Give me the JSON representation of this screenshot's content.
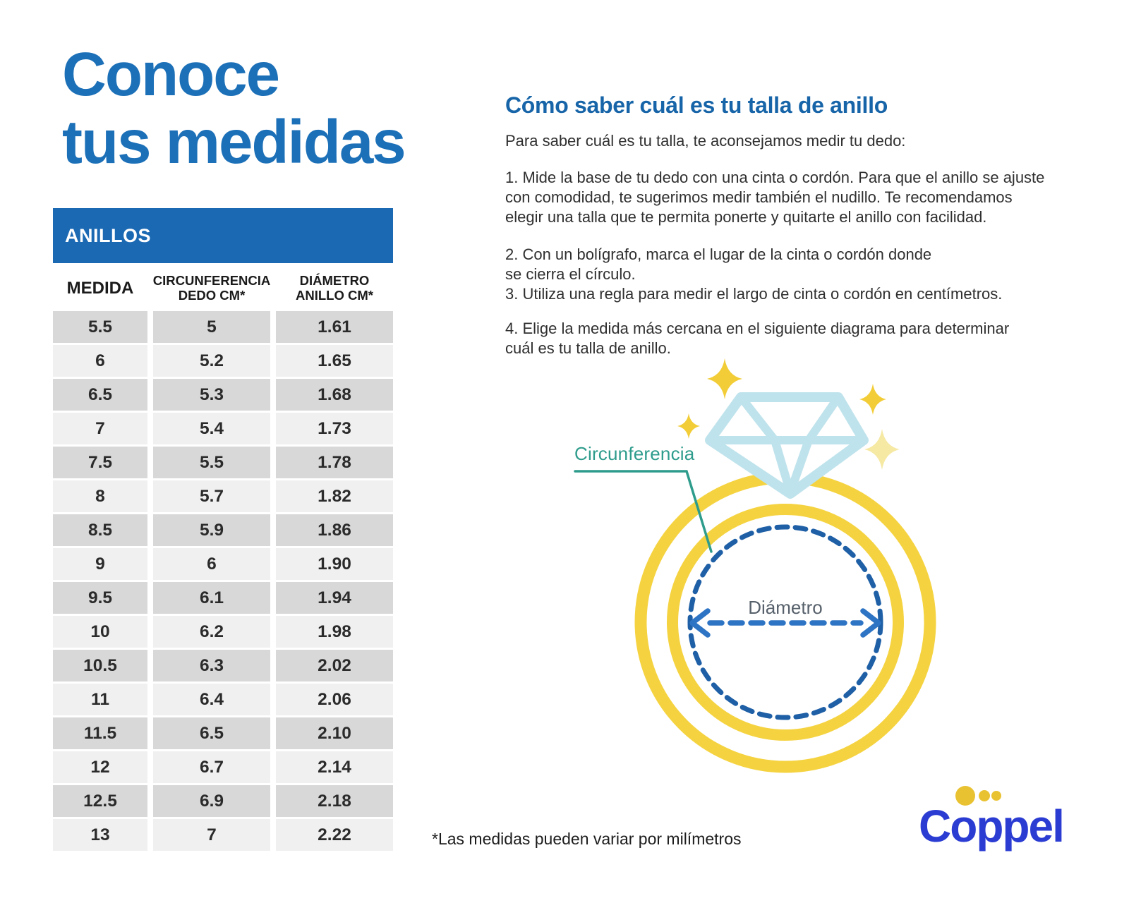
{
  "left": {
    "title_line1": "Conoce",
    "title_line2": "tus medidas"
  },
  "table": {
    "band": "ANILLOS",
    "headers": [
      "MEDIDA",
      "CIRCUNFERENCIA\nDEDO CM*",
      "DIÁMETRO\nANILLO CM*"
    ],
    "rows": [
      [
        "5.5",
        "5",
        "1.61"
      ],
      [
        "6",
        "5.2",
        "1.65"
      ],
      [
        "6.5",
        "5.3",
        "1.68"
      ],
      [
        "7",
        "5.4",
        "1.73"
      ],
      [
        "7.5",
        "5.5",
        "1.78"
      ],
      [
        "8",
        "5.7",
        "1.82"
      ],
      [
        "8.5",
        "5.9",
        "1.86"
      ],
      [
        "9",
        "6",
        "1.90"
      ],
      [
        "9.5",
        "6.1",
        "1.94"
      ],
      [
        "10",
        "6.2",
        "1.98"
      ],
      [
        "10.5",
        "6.3",
        "2.02"
      ],
      [
        "11",
        "6.4",
        "2.06"
      ],
      [
        "11.5",
        "6.5",
        "2.10"
      ],
      [
        "12",
        "6.7",
        "2.14"
      ],
      [
        "12.5",
        "6.9",
        "2.18"
      ],
      [
        "13",
        "7",
        "2.22"
      ]
    ]
  },
  "right": {
    "heading": "Cómo saber cuál es tu talla de anillo",
    "intro": "Para saber cuál es tu talla, te aconsejamos medir tu dedo:",
    "steps": [
      "1. Mide la base de tu dedo con una cinta o cordón. Para que el anillo se ajuste\ncon comodidad, te sugerimos medir también el nudillo. Te recomendamos\nelegir una talla que te permita ponerte y quitarte el anillo con facilidad.",
      "2. Con un bolígrafo, marca el lugar de la cinta o cordón donde\nse cierra el círculo.",
      "3. Utiliza una regla para medir el largo de cinta o cordón en centímetros.",
      "4. Elige la medida más cercana en el siguiente diagrama para determinar\ncuál es tu talla de anillo."
    ]
  },
  "diagram": {
    "label_circumference": "Circunferencia",
    "label_diameter": "Diámetro"
  },
  "footnote": "*Las medidas pueden variar por milímetros",
  "logo": {
    "text": "Coppel"
  },
  "colors": {
    "title_blue": "#1C70B8",
    "band_blue": "#1B69B3",
    "heading_blue": "#1765A8",
    "row_dark": "#D9D8D8",
    "row_light": "#F1F0F0",
    "ring_yellow": "#F5D340",
    "diamond_blue": "#BFE3EC",
    "dashed_navy": "#1E5FA6",
    "arrow_blue": "#2E74C4",
    "teal": "#2E9C8C",
    "diameter_gray": "#57616B",
    "logo_blue": "#2B3CD3",
    "logo_yellow": "#E9C232",
    "sparkle_gold": "#F2CD37",
    "sparkle_pale": "#F6E9A4"
  }
}
